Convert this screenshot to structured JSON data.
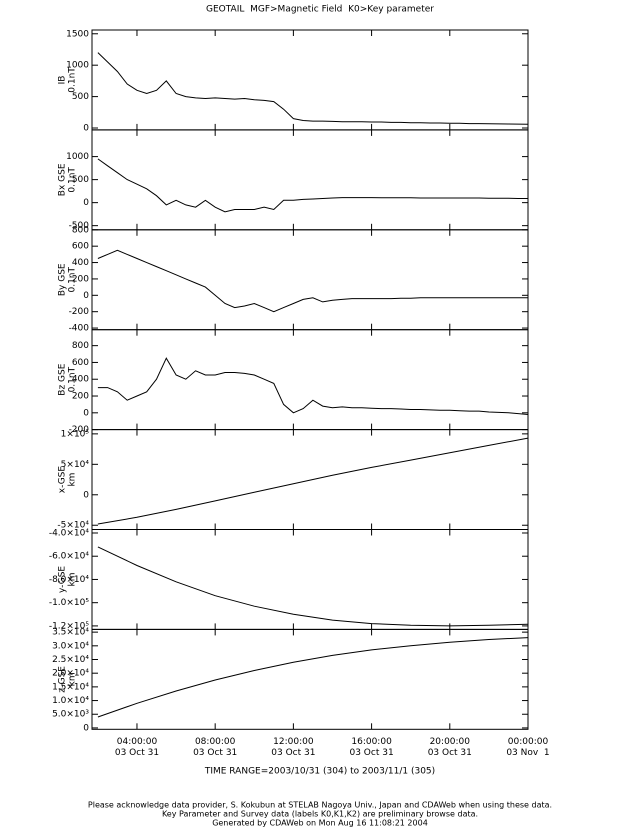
{
  "title": "GEOTAIL  MGF>Magnetic Field  K0>Key parameter",
  "time_range": "TIME RANGE=2003/10/31 (304) to 2003/11/1 (305)",
  "footer": [
    "Please acknowledge data provider, S. Kokubun at STELAB Nagoya Univ., Japan and CDAWeb when using these data.",
    "Key Parameter and Survey data (labels K0,K1,K2) are preliminary browse data.",
    "Generated by CDAWeb on Mon Aug 16 11:08:21 2004"
  ],
  "chart_data": [
    {
      "type": "line",
      "ylabel": [
        "IB",
        "0.1nT"
      ],
      "xlim": [
        1.7,
        24
      ],
      "ylim": [
        -30,
        1560
      ],
      "yticks": [
        0,
        500,
        1000,
        1500
      ],
      "color": "#000000",
      "x": [
        2,
        2.5,
        3,
        3.5,
        4,
        4.5,
        5,
        5.5,
        6,
        6.5,
        7,
        7.5,
        8,
        8.5,
        9,
        9.5,
        10,
        10.5,
        11,
        11.5,
        12,
        12.5,
        13,
        13.5,
        14,
        14.5,
        15,
        15.5,
        16,
        16.5,
        17,
        17.5,
        18,
        18.5,
        19,
        19.5,
        20,
        20.5,
        21,
        21.5,
        22,
        22.5,
        23,
        23.5,
        24
      ],
      "values": [
        1200,
        1050,
        900,
        700,
        600,
        550,
        600,
        750,
        550,
        500,
        480,
        470,
        480,
        470,
        460,
        470,
        450,
        440,
        420,
        300,
        150,
        120,
        110,
        110,
        105,
        100,
        100,
        100,
        95,
        95,
        90,
        90,
        85,
        85,
        80,
        80,
        75,
        75,
        70,
        70,
        68,
        66,
        64,
        62,
        60
      ]
    },
    {
      "type": "line",
      "ylabel": [
        "Bx GSE",
        "0.1nT"
      ],
      "xlim": [
        1.7,
        24
      ],
      "ylim": [
        -590,
        1580
      ],
      "yticks": [
        -500,
        0,
        500,
        1000
      ],
      "color": "#000000",
      "x": [
        2,
        2.5,
        3,
        3.5,
        4,
        4.5,
        5,
        5.5,
        6,
        6.5,
        7,
        7.5,
        8,
        8.5,
        9,
        9.5,
        10,
        10.5,
        11,
        11.5,
        12,
        12.5,
        13,
        13.5,
        14,
        14.5,
        15,
        15.5,
        16,
        16.5,
        17,
        17.5,
        18,
        18.5,
        19,
        19.5,
        20,
        20.5,
        21,
        21.5,
        22,
        22.5,
        23,
        23.5,
        24
      ],
      "values": [
        950,
        800,
        650,
        500,
        400,
        300,
        150,
        -50,
        50,
        -50,
        -100,
        50,
        -100,
        -200,
        -150,
        -150,
        -150,
        -100,
        -150,
        50,
        50,
        70,
        80,
        90,
        100,
        110,
        110,
        110,
        110,
        105,
        105,
        105,
        105,
        100,
        100,
        100,
        100,
        100,
        100,
        100,
        95,
        95,
        95,
        90,
        90
      ]
    },
    {
      "type": "line",
      "ylabel": [
        "By GSE",
        "0.1nT"
      ],
      "xlim": [
        1.7,
        24
      ],
      "ylim": [
        -420,
        800
      ],
      "yticks": [
        -400,
        -200,
        0,
        200,
        400,
        600,
        800
      ],
      "color": "#000000",
      "x": [
        2,
        2.5,
        3,
        3.5,
        4,
        4.5,
        5,
        5.5,
        6,
        6.5,
        7,
        7.5,
        8,
        8.5,
        9,
        9.5,
        10,
        10.5,
        11,
        11.5,
        12,
        12.5,
        13,
        13.5,
        14,
        14.5,
        15,
        15.5,
        16,
        16.5,
        17,
        17.5,
        18,
        18.5,
        19,
        19.5,
        20,
        20.5,
        21,
        21.5,
        22,
        22.5,
        23,
        23.5,
        24
      ],
      "values": [
        450,
        500,
        550,
        500,
        450,
        400,
        350,
        300,
        250,
        200,
        150,
        100,
        0,
        -100,
        -150,
        -130,
        -100,
        -150,
        -200,
        -150,
        -100,
        -50,
        -30,
        -80,
        -60,
        -50,
        -40,
        -40,
        -40,
        -40,
        -40,
        -35,
        -35,
        -30,
        -30,
        -30,
        -30,
        -30,
        -30,
        -30,
        -30,
        -30,
        -30,
        -30,
        -30
      ]
    },
    {
      "type": "line",
      "ylabel": [
        "Bz GSE",
        "0.1nT"
      ],
      "xlim": [
        1.7,
        24
      ],
      "ylim": [
        -200,
        990
      ],
      "yticks": [
        -200,
        0,
        200,
        400,
        600,
        800
      ],
      "color": "#000000",
      "x": [
        2,
        2.5,
        3,
        3.5,
        4,
        4.5,
        5,
        5.5,
        6,
        6.5,
        7,
        7.5,
        8,
        8.5,
        9,
        9.5,
        10,
        10.5,
        11,
        11.5,
        12,
        12.5,
        13,
        13.5,
        14,
        14.5,
        15,
        15.5,
        16,
        16.5,
        17,
        17.5,
        18,
        18.5,
        19,
        19.5,
        20,
        20.5,
        21,
        21.5,
        22,
        22.5,
        23,
        23.5,
        24
      ],
      "values": [
        300,
        300,
        250,
        150,
        200,
        250,
        400,
        650,
        450,
        400,
        500,
        450,
        450,
        480,
        480,
        470,
        450,
        400,
        350,
        100,
        0,
        50,
        150,
        80,
        60,
        70,
        60,
        60,
        55,
        50,
        50,
        45,
        40,
        40,
        35,
        30,
        30,
        25,
        20,
        20,
        10,
        5,
        0,
        -10,
        -20
      ]
    },
    {
      "type": "line",
      "ylabel": [
        "x-GSE",
        "km"
      ],
      "xlim": [
        1.7,
        24
      ],
      "ylim": [
        -57000,
        107000
      ],
      "yticks": [
        {
          "value": -50000,
          "label": "-5×10⁴"
        },
        0,
        {
          "value": 50000,
          "label": "5×10⁴"
        },
        {
          "value": 100000,
          "label": "1×10⁵"
        }
      ],
      "color": "#000000",
      "x": [
        2,
        4,
        6,
        8,
        10,
        12,
        14,
        16,
        18,
        20,
        22,
        24
      ],
      "values": [
        -48000,
        -37000,
        -24000,
        -10000,
        4000,
        18000,
        32000,
        45000,
        57000,
        69000,
        81000,
        93000
      ]
    },
    {
      "type": "line",
      "ylabel": [
        "y-GSE",
        "km"
      ],
      "xlim": [
        1.7,
        24
      ],
      "ylim": [
        -123000,
        -37000
      ],
      "yticks": [
        {
          "value": -40000,
          "label": "-4.0×10⁴"
        },
        {
          "value": -60000,
          "label": "-6.0×10⁴"
        },
        {
          "value": -80000,
          "label": "-8.0×10⁴"
        },
        {
          "value": -100000,
          "label": "-1.0×10⁵"
        },
        {
          "value": -120000,
          "label": "-1.2×10⁵"
        }
      ],
      "color": "#000000",
      "x": [
        2,
        4,
        6,
        8,
        10,
        12,
        14,
        16,
        18,
        20,
        22,
        24
      ],
      "values": [
        -52000,
        -68000,
        -82000,
        -94000,
        -103000,
        -110000,
        -115000,
        -118000,
        -119500,
        -120000,
        -119500,
        -118500
      ]
    },
    {
      "type": "line",
      "ylabel": [
        "z-GSE",
        "km"
      ],
      "xlim": [
        1.7,
        24
      ],
      "ylim": [
        -500,
        36000
      ],
      "yticks": [
        0,
        {
          "value": 5000,
          "label": "5.0×10³"
        },
        {
          "value": 10000,
          "label": "1.0×10⁴"
        },
        {
          "value": 15000,
          "label": "1.5×10⁴"
        },
        {
          "value": 20000,
          "label": "2.0×10⁴"
        },
        {
          "value": 25000,
          "label": "2.5×10⁴"
        },
        {
          "value": 30000,
          "label": "3.0×10⁴"
        },
        {
          "value": 35000,
          "label": "3.5×10⁴"
        }
      ],
      "color": "#000000",
      "x": [
        2,
        4,
        6,
        8,
        10,
        12,
        14,
        16,
        18,
        20,
        22,
        24
      ],
      "values": [
        4000,
        9000,
        13500,
        17500,
        21000,
        24000,
        26500,
        28500,
        30000,
        31300,
        32300,
        33000
      ],
      "xticks": [
        {
          "value": 4,
          "label": "04:00:00"
        },
        {
          "value": 8,
          "label": "08:00:00"
        },
        {
          "value": 12,
          "label": "12:00:00"
        },
        {
          "value": 16,
          "label": "16:00:00"
        },
        {
          "value": 20,
          "label": "20:00:00"
        },
        {
          "value": 24,
          "label": "00:00:00"
        }
      ],
      "xtick_dates": [
        "03 Oct 31",
        "03 Oct 31",
        "03 Oct 31",
        "03 Oct 31",
        "03 Oct 31",
        "03 Nov  1"
      ]
    }
  ]
}
